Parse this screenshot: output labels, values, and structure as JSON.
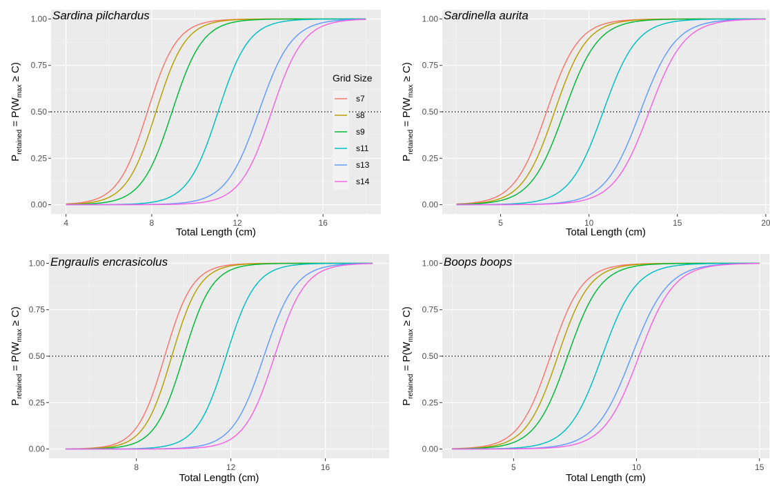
{
  "chart_data": [
    {
      "type": "line",
      "title": "Sardina pilchardus",
      "xlabel": "Total Length (cm)",
      "ylabel_main": "P",
      "ylabel_sub": "retained",
      "ylabel_mid": " = P(W",
      "ylabel_sub2": "max",
      "ylabel_end": " ≥ C)",
      "xlim": [
        3.3,
        18.7
      ],
      "ylim": [
        -0.05,
        1.05
      ],
      "xticks": [
        4,
        8,
        12,
        16
      ],
      "yticks": [
        0,
        0.25,
        0.5,
        0.75,
        1
      ],
      "ytick_labels": [
        "0.00",
        "0.25",
        "0.50",
        "0.75",
        "1.00"
      ],
      "reference_y": 0.5,
      "x_range": [
        4,
        18
      ],
      "series": [
        {
          "name": "s7",
          "color": "#F8766D",
          "x50": 7.8,
          "k": 1.45
        },
        {
          "name": "s8",
          "color": "#B79F00",
          "x50": 8.2,
          "k": 1.45
        },
        {
          "name": "s9",
          "color": "#00BA38",
          "x50": 8.95,
          "k": 1.4
        },
        {
          "name": "s11",
          "color": "#00BFC4",
          "x50": 11.1,
          "k": 1.4
        },
        {
          "name": "s13",
          "color": "#619CFF",
          "x50": 13.0,
          "k": 1.3
        },
        {
          "name": "s14",
          "color": "#F564E3",
          "x50": 13.6,
          "k": 1.35
        }
      ]
    },
    {
      "type": "line",
      "title": "Sardinella aurita",
      "xlabel": "Total Length (cm)",
      "ylabel_main": "P",
      "ylabel_sub": "retained",
      "ylabel_mid": " = P(W",
      "ylabel_sub2": "max",
      "ylabel_end": " ≥ C)",
      "xlim": [
        1.7,
        20.2
      ],
      "ylim": [
        -0.05,
        1.05
      ],
      "xticks": [
        5,
        10,
        15,
        20
      ],
      "yticks": [
        0,
        0.25,
        0.5,
        0.75,
        1
      ],
      "ytick_labels": [
        "0.00",
        "0.25",
        "0.50",
        "0.75",
        "1.00"
      ],
      "reference_y": 0.5,
      "x_range": [
        2.5,
        20
      ],
      "series": [
        {
          "name": "s7",
          "color": "#F8766D",
          "x50": 7.6,
          "k": 1.1
        },
        {
          "name": "s8",
          "color": "#B79F00",
          "x50": 8.05,
          "k": 1.1
        },
        {
          "name": "s9",
          "color": "#00BA38",
          "x50": 8.6,
          "k": 1.05
        },
        {
          "name": "s11",
          "color": "#00BFC4",
          "x50": 10.8,
          "k": 1.05
        },
        {
          "name": "s13",
          "color": "#619CFF",
          "x50": 12.9,
          "k": 1.0
        },
        {
          "name": "s14",
          "color": "#F564E3",
          "x50": 13.4,
          "k": 1.0
        }
      ]
    },
    {
      "type": "line",
      "title": "Engraulis encrasicolus",
      "xlabel": "Total Length (cm)",
      "ylabel_main": "P",
      "ylabel_sub": "retained",
      "ylabel_mid": " = P(W",
      "ylabel_sub2": "max",
      "ylabel_end": " ≥ C)",
      "xlim": [
        4.3,
        18.7
      ],
      "ylim": [
        -0.05,
        1.05
      ],
      "xticks": [
        8,
        12,
        16
      ],
      "yticks": [
        0,
        0.25,
        0.5,
        0.75,
        1
      ],
      "ytick_labels": [
        "0.00",
        "0.25",
        "0.50",
        "0.75",
        "1.00"
      ],
      "reference_y": 0.5,
      "x_range": [
        5,
        18
      ],
      "series": [
        {
          "name": "s7",
          "color": "#F8766D",
          "x50": 9.2,
          "k": 1.7
        },
        {
          "name": "s8",
          "color": "#B79F00",
          "x50": 9.5,
          "k": 1.7
        },
        {
          "name": "s9",
          "color": "#00BA38",
          "x50": 10.0,
          "k": 1.65
        },
        {
          "name": "s11",
          "color": "#00BFC4",
          "x50": 11.8,
          "k": 1.6
        },
        {
          "name": "s13",
          "color": "#619CFF",
          "x50": 13.4,
          "k": 1.5
        },
        {
          "name": "s14",
          "color": "#F564E3",
          "x50": 13.85,
          "k": 1.55
        }
      ]
    },
    {
      "type": "line",
      "title": "Boops boops",
      "xlabel": "Total Length (cm)",
      "ylabel_main": "P",
      "ylabel_sub": "retained",
      "ylabel_mid": " = P(W",
      "ylabel_sub2": "max",
      "ylabel_end": " ≥ C)",
      "xlim": [
        2.1,
        15.4
      ],
      "ylim": [
        -0.05,
        1.05
      ],
      "xticks": [
        5,
        10,
        15
      ],
      "yticks": [
        0,
        0.25,
        0.5,
        0.75,
        1
      ],
      "ytick_labels": [
        "0.00",
        "0.25",
        "0.50",
        "0.75",
        "1.00"
      ],
      "reference_y": 0.5,
      "x_range": [
        2.5,
        15
      ],
      "series": [
        {
          "name": "s7",
          "color": "#F8766D",
          "x50": 6.5,
          "k": 1.55
        },
        {
          "name": "s8",
          "color": "#B79F00",
          "x50": 6.8,
          "k": 1.55
        },
        {
          "name": "s9",
          "color": "#00BA38",
          "x50": 7.2,
          "k": 1.5
        },
        {
          "name": "s11",
          "color": "#00BFC4",
          "x50": 8.6,
          "k": 1.45
        },
        {
          "name": "s13",
          "color": "#619CFF",
          "x50": 9.8,
          "k": 1.35
        },
        {
          "name": "s14",
          "color": "#F564E3",
          "x50": 10.1,
          "k": 1.4
        }
      ]
    }
  ],
  "legend": {
    "title": "Grid Size",
    "placement": "right",
    "items": [
      {
        "label": "s7",
        "color": "#F8766D"
      },
      {
        "label": "s8",
        "color": "#B79F00"
      },
      {
        "label": "s9",
        "color": "#00BA38"
      },
      {
        "label": "s11",
        "color": "#00BFC4"
      },
      {
        "label": "s13",
        "color": "#619CFF"
      },
      {
        "label": "s14",
        "color": "#F564E3"
      }
    ]
  }
}
